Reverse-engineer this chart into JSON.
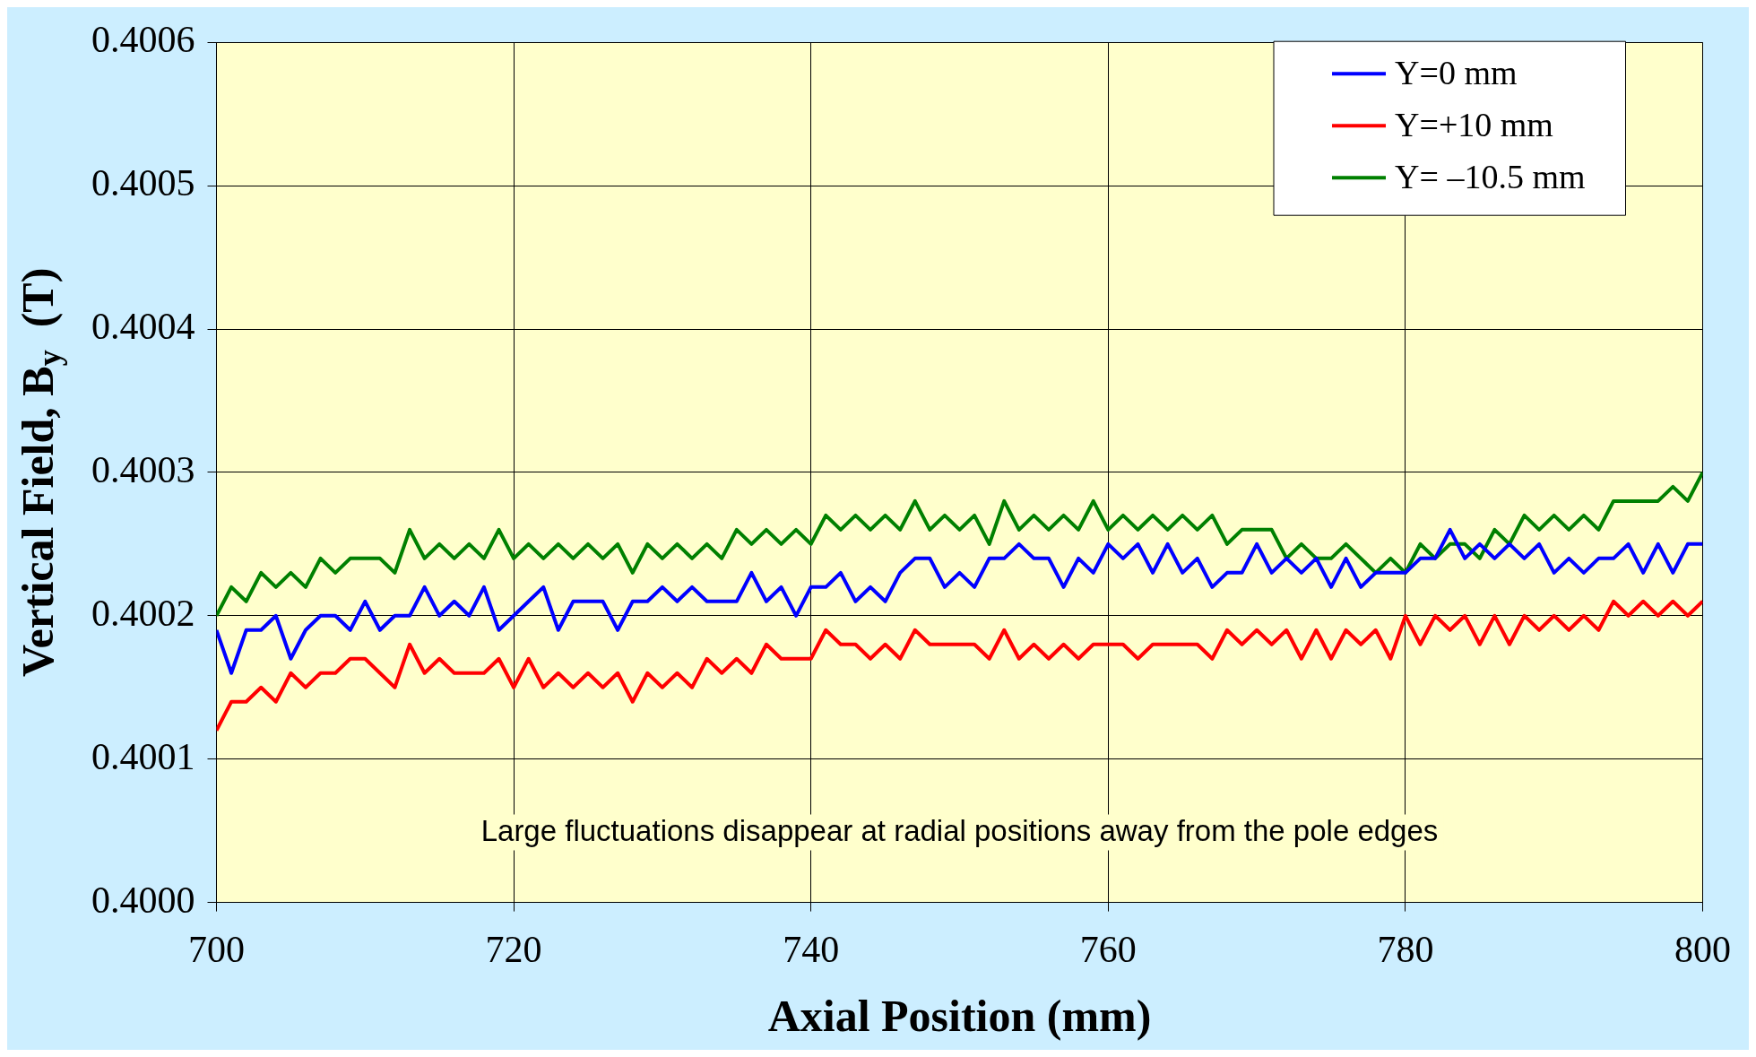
{
  "chart_data": {
    "type": "line",
    "xlabel": "Axial Position (mm)",
    "ylabel": "Vertical Field, B$_{y}$  (T)",
    "x": [
      700,
      701,
      702,
      703,
      704,
      705,
      706,
      707,
      708,
      709,
      710,
      711,
      712,
      713,
      714,
      715,
      716,
      717,
      718,
      719,
      720,
      721,
      722,
      723,
      724,
      725,
      726,
      727,
      728,
      729,
      730,
      731,
      732,
      733,
      734,
      735,
      736,
      737,
      738,
      739,
      740,
      741,
      742,
      743,
      744,
      745,
      746,
      747,
      748,
      749,
      750,
      751,
      752,
      753,
      754,
      755,
      756,
      757,
      758,
      759,
      760,
      761,
      762,
      763,
      764,
      765,
      766,
      767,
      768,
      769,
      770,
      771,
      772,
      773,
      774,
      775,
      776,
      777,
      778,
      779,
      780,
      781,
      782,
      783,
      784,
      785,
      786,
      787,
      788,
      789,
      790,
      791,
      792,
      793,
      794,
      795,
      796,
      797,
      798,
      799,
      800
    ],
    "series": [
      {
        "name": "Y=0 mm",
        "color": "#0000ff",
        "values": [
          0.40019,
          0.40016,
          0.40019,
          0.40019,
          0.4002,
          0.40017,
          0.40019,
          0.4002,
          0.4002,
          0.40019,
          0.40021,
          0.40019,
          0.4002,
          0.4002,
          0.40022,
          0.4002,
          0.40021,
          0.4002,
          0.40022,
          0.40019,
          0.4002,
          0.40021,
          0.40022,
          0.40019,
          0.40021,
          0.40021,
          0.40021,
          0.40019,
          0.40021,
          0.40021,
          0.40022,
          0.40021,
          0.40022,
          0.40021,
          0.40021,
          0.40021,
          0.40023,
          0.40021,
          0.40022,
          0.4002,
          0.40022,
          0.40022,
          0.40023,
          0.40021,
          0.40022,
          0.40021,
          0.40023,
          0.40024,
          0.40024,
          0.40022,
          0.40023,
          0.40022,
          0.40024,
          0.40024,
          0.40025,
          0.40024,
          0.40024,
          0.40022,
          0.40024,
          0.40023,
          0.40025,
          0.40024,
          0.40025,
          0.40023,
          0.40025,
          0.40023,
          0.40024,
          0.40022,
          0.40023,
          0.40023,
          0.40025,
          0.40023,
          0.40024,
          0.40023,
          0.40024,
          0.40022,
          0.40024,
          0.40022,
          0.40023,
          0.40023,
          0.40023,
          0.40024,
          0.40024,
          0.40026,
          0.40024,
          0.40025,
          0.40024,
          0.40025,
          0.40024,
          0.40025,
          0.40023,
          0.40024,
          0.40023,
          0.40024,
          0.40024,
          0.40025,
          0.40023,
          0.40025,
          0.40023,
          0.40025,
          0.40025
        ]
      },
      {
        "name": "Y=+10 mm",
        "color": "#ff0000",
        "values": [
          0.40012,
          0.40014,
          0.40014,
          0.40015,
          0.40014,
          0.40016,
          0.40015,
          0.40016,
          0.40016,
          0.40017,
          0.40017,
          0.40016,
          0.40015,
          0.40018,
          0.40016,
          0.40017,
          0.40016,
          0.40016,
          0.40016,
          0.40017,
          0.40015,
          0.40017,
          0.40015,
          0.40016,
          0.40015,
          0.40016,
          0.40015,
          0.40016,
          0.40014,
          0.40016,
          0.40015,
          0.40016,
          0.40015,
          0.40017,
          0.40016,
          0.40017,
          0.40016,
          0.40018,
          0.40017,
          0.40017,
          0.40017,
          0.40019,
          0.40018,
          0.40018,
          0.40017,
          0.40018,
          0.40017,
          0.40019,
          0.40018,
          0.40018,
          0.40018,
          0.40018,
          0.40017,
          0.40019,
          0.40017,
          0.40018,
          0.40017,
          0.40018,
          0.40017,
          0.40018,
          0.40018,
          0.40018,
          0.40017,
          0.40018,
          0.40018,
          0.40018,
          0.40018,
          0.40017,
          0.40019,
          0.40018,
          0.40019,
          0.40018,
          0.40019,
          0.40017,
          0.40019,
          0.40017,
          0.40019,
          0.40018,
          0.40019,
          0.40017,
          0.4002,
          0.40018,
          0.4002,
          0.40019,
          0.4002,
          0.40018,
          0.4002,
          0.40018,
          0.4002,
          0.40019,
          0.4002,
          0.40019,
          0.4002,
          0.40019,
          0.40021,
          0.4002,
          0.40021,
          0.4002,
          0.40021,
          0.4002,
          0.40021
        ]
      },
      {
        "name": "Y= –10.5 mm",
        "color": "#008000",
        "values": [
          0.4002,
          0.40022,
          0.40021,
          0.40023,
          0.40022,
          0.40023,
          0.40022,
          0.40024,
          0.40023,
          0.40024,
          0.40024,
          0.40024,
          0.40023,
          0.40026,
          0.40024,
          0.40025,
          0.40024,
          0.40025,
          0.40024,
          0.40026,
          0.40024,
          0.40025,
          0.40024,
          0.40025,
          0.40024,
          0.40025,
          0.40024,
          0.40025,
          0.40023,
          0.40025,
          0.40024,
          0.40025,
          0.40024,
          0.40025,
          0.40024,
          0.40026,
          0.40025,
          0.40026,
          0.40025,
          0.40026,
          0.40025,
          0.40027,
          0.40026,
          0.40027,
          0.40026,
          0.40027,
          0.40026,
          0.40028,
          0.40026,
          0.40027,
          0.40026,
          0.40027,
          0.40025,
          0.40028,
          0.40026,
          0.40027,
          0.40026,
          0.40027,
          0.40026,
          0.40028,
          0.40026,
          0.40027,
          0.40026,
          0.40027,
          0.40026,
          0.40027,
          0.40026,
          0.40027,
          0.40025,
          0.40026,
          0.40026,
          0.40026,
          0.40024,
          0.40025,
          0.40024,
          0.40024,
          0.40025,
          0.40024,
          0.40023,
          0.40024,
          0.40023,
          0.40025,
          0.40024,
          0.40025,
          0.40025,
          0.40024,
          0.40026,
          0.40025,
          0.40027,
          0.40026,
          0.40027,
          0.40026,
          0.40027,
          0.40026,
          0.40028,
          0.40028,
          0.40028,
          0.40028,
          0.40029,
          0.40028,
          0.4003
        ]
      }
    ],
    "xlim": [
      700,
      800
    ],
    "xticks": [
      700,
      720,
      740,
      760,
      780,
      800
    ],
    "ylim": [
      0.4,
      0.4006
    ],
    "yticks": [
      {
        "value": 0.4,
        "label": "0.4000"
      },
      {
        "value": 0.4001,
        "label": "0.4001"
      },
      {
        "value": 0.4002,
        "label": "0.4002"
      },
      {
        "value": 0.4003,
        "label": "0.4003"
      },
      {
        "value": 0.4004,
        "label": "0.4004"
      },
      {
        "value": 0.4005,
        "label": "0.4005"
      },
      {
        "value": 0.4006,
        "label": "0.4006"
      }
    ],
    "grid": true,
    "legend": "top right",
    "marker": "none",
    "line_style": "solid",
    "annotations": [
      "Large fluctuations disappear at radial positions away from the pole edges"
    ]
  }
}
